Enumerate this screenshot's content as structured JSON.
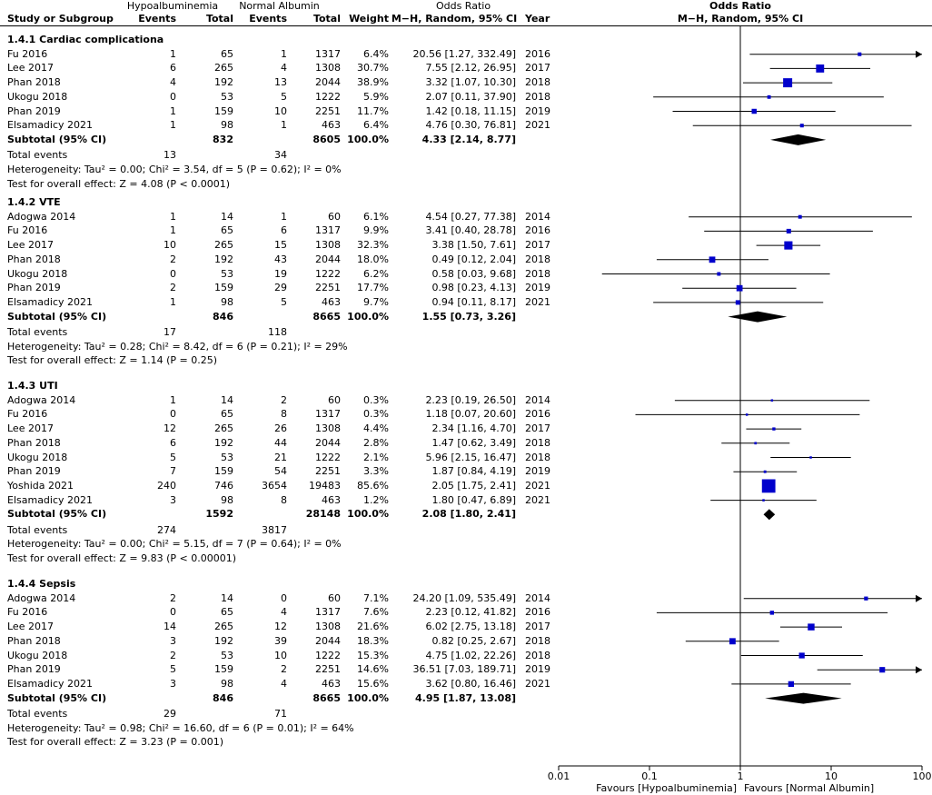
{
  "header": {
    "group1": "Hypoalbuminemia",
    "group2": "Normal Albumin",
    "or_title": "Odds Ratio",
    "study_col": "Study or Subgroup",
    "events1": "Events",
    "total1": "Total",
    "events2": "Events",
    "total2": "Total",
    "weight": "Weight",
    "method": "M−H, Random, 95% CI",
    "year": "Year",
    "plot_title": "Odds Ratio",
    "plot_method": "M−H, Random, 95% CI"
  },
  "subgroups": [
    {
      "title": "1.4.1 Cardiac complicationa",
      "studies": [
        {
          "name": "Fu 2016",
          "e1": "1",
          "n1": "65",
          "e2": "1",
          "n2": "1317",
          "w": "6.4%",
          "ci": "20.56 [1.27, 332.49]",
          "year": "2016"
        },
        {
          "name": "Lee 2017",
          "e1": "6",
          "n1": "265",
          "e2": "4",
          "n2": "1308",
          "w": "30.7%",
          "ci": "7.55 [2.12, 26.95]",
          "year": "2017"
        },
        {
          "name": "Phan 2018",
          "e1": "4",
          "n1": "192",
          "e2": "13",
          "n2": "2044",
          "w": "38.9%",
          "ci": "3.32 [1.07, 10.30]",
          "year": "2018"
        },
        {
          "name": "Ukogu 2018",
          "e1": "0",
          "n1": "53",
          "e2": "5",
          "n2": "1222",
          "w": "5.9%",
          "ci": "2.07 [0.11, 37.90]",
          "year": "2018"
        },
        {
          "name": "Phan 2019",
          "e1": "1",
          "n1": "159",
          "e2": "10",
          "n2": "2251",
          "w": "11.7%",
          "ci": "1.42 [0.18, 11.15]",
          "year": "2019"
        },
        {
          "name": "Elsamadicy 2021",
          "e1": "1",
          "n1": "98",
          "e2": "1",
          "n2": "463",
          "w": "6.4%",
          "ci": "4.76 [0.30, 76.81]",
          "year": "2021"
        }
      ],
      "subtotal": {
        "label": "Subtotal (95% CI)",
        "n1": "832",
        "n2": "8605",
        "w": "100.0%",
        "ci": "4.33 [2.14, 8.77]"
      },
      "total_events": {
        "label": "Total events",
        "e1": "13",
        "e2": "34"
      },
      "heterogeneity": "Heterogeneity: Tau² = 0.00; Chi² = 3.54, df = 5 (P = 0.62); I² = 0%",
      "overall": "Test for overall effect: Z = 4.08 (P < 0.0001)"
    },
    {
      "title": "1.4.2 VTE",
      "studies": [
        {
          "name": "Adogwa 2014",
          "e1": "1",
          "n1": "14",
          "e2": "1",
          "n2": "60",
          "w": "6.1%",
          "ci": "4.54 [0.27, 77.38]",
          "year": "2014"
        },
        {
          "name": "Fu 2016",
          "e1": "1",
          "n1": "65",
          "e2": "6",
          "n2": "1317",
          "w": "9.9%",
          "ci": "3.41 [0.40, 28.78]",
          "year": "2016"
        },
        {
          "name": "Lee 2017",
          "e1": "10",
          "n1": "265",
          "e2": "15",
          "n2": "1308",
          "w": "32.3%",
          "ci": "3.38 [1.50, 7.61]",
          "year": "2017"
        },
        {
          "name": "Phan 2018",
          "e1": "2",
          "n1": "192",
          "e2": "43",
          "n2": "2044",
          "w": "18.0%",
          "ci": "0.49 [0.12, 2.04]",
          "year": "2018"
        },
        {
          "name": "Ukogu 2018",
          "e1": "0",
          "n1": "53",
          "e2": "19",
          "n2": "1222",
          "w": "6.2%",
          "ci": "0.58 [0.03, 9.68]",
          "year": "2018"
        },
        {
          "name": "Phan 2019",
          "e1": "2",
          "n1": "159",
          "e2": "29",
          "n2": "2251",
          "w": "17.7%",
          "ci": "0.98 [0.23, 4.13]",
          "year": "2019"
        },
        {
          "name": "Elsamadicy 2021",
          "e1": "1",
          "n1": "98",
          "e2": "5",
          "n2": "463",
          "w": "9.7%",
          "ci": "0.94 [0.11, 8.17]",
          "year": "2021"
        }
      ],
      "subtotal": {
        "label": "Subtotal (95% CI)",
        "n1": "846",
        "n2": "8665",
        "w": "100.0%",
        "ci": "1.55 [0.73, 3.26]"
      },
      "total_events": {
        "label": "Total events",
        "e1": "17",
        "e2": "118"
      },
      "heterogeneity": "Heterogeneity: Tau² = 0.28; Chi² = 8.42, df = 6 (P = 0.21); I² = 29%",
      "overall": "Test for overall effect: Z = 1.14 (P = 0.25)"
    },
    {
      "title": "1.4.3 UTI",
      "studies": [
        {
          "name": "Adogwa 2014",
          "e1": "1",
          "n1": "14",
          "e2": "2",
          "n2": "60",
          "w": "0.3%",
          "ci": "2.23 [0.19, 26.50]",
          "year": "2014"
        },
        {
          "name": "Fu 2016",
          "e1": "0",
          "n1": "65",
          "e2": "8",
          "n2": "1317",
          "w": "0.3%",
          "ci": "1.18 [0.07, 20.60]",
          "year": "2016"
        },
        {
          "name": "Lee 2017",
          "e1": "12",
          "n1": "265",
          "e2": "26",
          "n2": "1308",
          "w": "4.4%",
          "ci": "2.34 [1.16, 4.70]",
          "year": "2017"
        },
        {
          "name": "Phan 2018",
          "e1": "6",
          "n1": "192",
          "e2": "44",
          "n2": "2044",
          "w": "2.8%",
          "ci": "1.47 [0.62, 3.49]",
          "year": "2018"
        },
        {
          "name": "Ukogu 2018",
          "e1": "5",
          "n1": "53",
          "e2": "21",
          "n2": "1222",
          "w": "2.1%",
          "ci": "5.96 [2.15, 16.47]",
          "year": "2018"
        },
        {
          "name": "Phan 2019",
          "e1": "7",
          "n1": "159",
          "e2": "54",
          "n2": "2251",
          "w": "3.3%",
          "ci": "1.87 [0.84, 4.19]",
          "year": "2019"
        },
        {
          "name": "Yoshida 2021",
          "e1": "240",
          "n1": "746",
          "e2": "3654",
          "n2": "19483",
          "w": "85.6%",
          "ci": "2.05 [1.75, 2.41]",
          "year": "2021"
        },
        {
          "name": "Elsamadicy 2021",
          "e1": "3",
          "n1": "98",
          "e2": "8",
          "n2": "463",
          "w": "1.2%",
          "ci": "1.80 [0.47, 6.89]",
          "year": "2021"
        }
      ],
      "subtotal": {
        "label": "Subtotal (95% CI)",
        "n1": "1592",
        "n2": "28148",
        "w": "100.0%",
        "ci": "2.08 [1.80, 2.41]"
      },
      "total_events": {
        "label": "Total events",
        "e1": "274",
        "e2": "3817"
      },
      "heterogeneity": "Heterogeneity: Tau² = 0.00; Chi² = 5.15, df = 7 (P = 0.64); I² = 0%",
      "overall": "Test for overall effect: Z = 9.83 (P < 0.00001)"
    },
    {
      "title": "1.4.4 Sepsis",
      "studies": [
        {
          "name": "Adogwa 2014",
          "e1": "2",
          "n1": "14",
          "e2": "0",
          "n2": "60",
          "w": "7.1%",
          "ci": "24.20 [1.09, 535.49]",
          "year": "2014"
        },
        {
          "name": "Fu 2016",
          "e1": "0",
          "n1": "65",
          "e2": "4",
          "n2": "1317",
          "w": "7.6%",
          "ci": "2.23 [0.12, 41.82]",
          "year": "2016"
        },
        {
          "name": "Lee 2017",
          "e1": "14",
          "n1": "265",
          "e2": "12",
          "n2": "1308",
          "w": "21.6%",
          "ci": "6.02 [2.75, 13.18]",
          "year": "2017"
        },
        {
          "name": "Phan 2018",
          "e1": "3",
          "n1": "192",
          "e2": "39",
          "n2": "2044",
          "w": "18.3%",
          "ci": "0.82 [0.25, 2.67]",
          "year": "2018"
        },
        {
          "name": "Ukogu 2018",
          "e1": "2",
          "n1": "53",
          "e2": "10",
          "n2": "1222",
          "w": "15.3%",
          "ci": "4.75 [1.02, 22.26]",
          "year": "2018"
        },
        {
          "name": "Phan 2019",
          "e1": "5",
          "n1": "159",
          "e2": "2",
          "n2": "2251",
          "w": "14.6%",
          "ci": "36.51 [7.03, 189.71]",
          "year": "2019"
        },
        {
          "name": "Elsamadicy 2021",
          "e1": "3",
          "n1": "98",
          "e2": "4",
          "n2": "463",
          "w": "15.6%",
          "ci": "3.62 [0.80, 16.46]",
          "year": "2021"
        }
      ],
      "subtotal": {
        "label": "Subtotal (95% CI)",
        "n1": "846",
        "n2": "8665",
        "w": "100.0%",
        "ci": "4.95 [1.87, 13.08]"
      },
      "total_events": {
        "label": "Total events",
        "e1": "29",
        "e2": "71"
      },
      "heterogeneity": "Heterogeneity: Tau² = 0.98; Chi² = 16.60, df = 6 (P = 0.01); I² = 64%",
      "overall": "Test for overall effect: Z = 3.23 (P = 0.001)"
    }
  ],
  "chart_data": {
    "type": "forest",
    "title": "Odds Ratio",
    "subtitle": "M−H, Random, 95% CI",
    "xscale": "log",
    "xlim": [
      0.01,
      100
    ],
    "xticks": [
      0.01,
      0.1,
      1,
      10,
      100
    ],
    "xtick_labels": [
      "0.01",
      "0.1",
      "1",
      "10",
      "100"
    ],
    "reference_line": 1,
    "favours_left": "Favours [Hypoalbuminemia]",
    "favours_right": "Favours [Normal Albumin]",
    "square_color": "#0000cc",
    "diamond_color": "#000000",
    "subgroups": [
      {
        "name": "1.4.1 Cardiac complicationa",
        "studies": [
          {
            "study": "Fu 2016",
            "or": 20.56,
            "lo": 1.27,
            "hi": 332.49,
            "weight": 6.4
          },
          {
            "study": "Lee 2017",
            "or": 7.55,
            "lo": 2.12,
            "hi": 26.95,
            "weight": 30.7
          },
          {
            "study": "Phan 2018",
            "or": 3.32,
            "lo": 1.07,
            "hi": 10.3,
            "weight": 38.9
          },
          {
            "study": "Ukogu 2018",
            "or": 2.07,
            "lo": 0.11,
            "hi": 37.9,
            "weight": 5.9
          },
          {
            "study": "Phan 2019",
            "or": 1.42,
            "lo": 0.18,
            "hi": 11.15,
            "weight": 11.7
          },
          {
            "study": "Elsamadicy 2021",
            "or": 4.76,
            "lo": 0.3,
            "hi": 76.81,
            "weight": 6.4
          }
        ],
        "pooled": {
          "or": 4.33,
          "lo": 2.14,
          "hi": 8.77
        }
      },
      {
        "name": "1.4.2 VTE",
        "studies": [
          {
            "study": "Adogwa 2014",
            "or": 4.54,
            "lo": 0.27,
            "hi": 77.38,
            "weight": 6.1
          },
          {
            "study": "Fu 2016",
            "or": 3.41,
            "lo": 0.4,
            "hi": 28.78,
            "weight": 9.9
          },
          {
            "study": "Lee 2017",
            "or": 3.38,
            "lo": 1.5,
            "hi": 7.61,
            "weight": 32.3
          },
          {
            "study": "Phan 2018",
            "or": 0.49,
            "lo": 0.12,
            "hi": 2.04,
            "weight": 18.0
          },
          {
            "study": "Ukogu 2018",
            "or": 0.58,
            "lo": 0.03,
            "hi": 9.68,
            "weight": 6.2
          },
          {
            "study": "Phan 2019",
            "or": 0.98,
            "lo": 0.23,
            "hi": 4.13,
            "weight": 17.7
          },
          {
            "study": "Elsamadicy 2021",
            "or": 0.94,
            "lo": 0.11,
            "hi": 8.17,
            "weight": 9.7
          }
        ],
        "pooled": {
          "or": 1.55,
          "lo": 0.73,
          "hi": 3.26
        }
      },
      {
        "name": "1.4.3 UTI",
        "studies": [
          {
            "study": "Adogwa 2014",
            "or": 2.23,
            "lo": 0.19,
            "hi": 26.5,
            "weight": 0.3
          },
          {
            "study": "Fu 2016",
            "or": 1.18,
            "lo": 0.07,
            "hi": 20.6,
            "weight": 0.3
          },
          {
            "study": "Lee 2017",
            "or": 2.34,
            "lo": 1.16,
            "hi": 4.7,
            "weight": 4.4
          },
          {
            "study": "Phan 2018",
            "or": 1.47,
            "lo": 0.62,
            "hi": 3.49,
            "weight": 2.8
          },
          {
            "study": "Ukogu 2018",
            "or": 5.96,
            "lo": 2.15,
            "hi": 16.47,
            "weight": 2.1
          },
          {
            "study": "Phan 2019",
            "or": 1.87,
            "lo": 0.84,
            "hi": 4.19,
            "weight": 3.3
          },
          {
            "study": "Yoshida 2021",
            "or": 2.05,
            "lo": 1.75,
            "hi": 2.41,
            "weight": 85.6
          },
          {
            "study": "Elsamadicy 2021",
            "or": 1.8,
            "lo": 0.47,
            "hi": 6.89,
            "weight": 1.2
          }
        ],
        "pooled": {
          "or": 2.08,
          "lo": 1.8,
          "hi": 2.41
        }
      },
      {
        "name": "1.4.4 Sepsis",
        "studies": [
          {
            "study": "Adogwa 2014",
            "or": 24.2,
            "lo": 1.09,
            "hi": 535.49,
            "weight": 7.1
          },
          {
            "study": "Fu 2016",
            "or": 2.23,
            "lo": 0.12,
            "hi": 41.82,
            "weight": 7.6
          },
          {
            "study": "Lee 2017",
            "or": 6.02,
            "lo": 2.75,
            "hi": 13.18,
            "weight": 21.6
          },
          {
            "study": "Phan 2018",
            "or": 0.82,
            "lo": 0.25,
            "hi": 2.67,
            "weight": 18.3
          },
          {
            "study": "Ukogu 2018",
            "or": 4.75,
            "lo": 1.02,
            "hi": 22.26,
            "weight": 15.3
          },
          {
            "study": "Phan 2019",
            "or": 36.51,
            "lo": 7.03,
            "hi": 189.71,
            "weight": 14.6
          },
          {
            "study": "Elsamadicy 2021",
            "or": 3.62,
            "lo": 0.8,
            "hi": 16.46,
            "weight": 15.6
          }
        ],
        "pooled": {
          "or": 4.95,
          "lo": 1.87,
          "hi": 13.08
        }
      }
    ]
  }
}
